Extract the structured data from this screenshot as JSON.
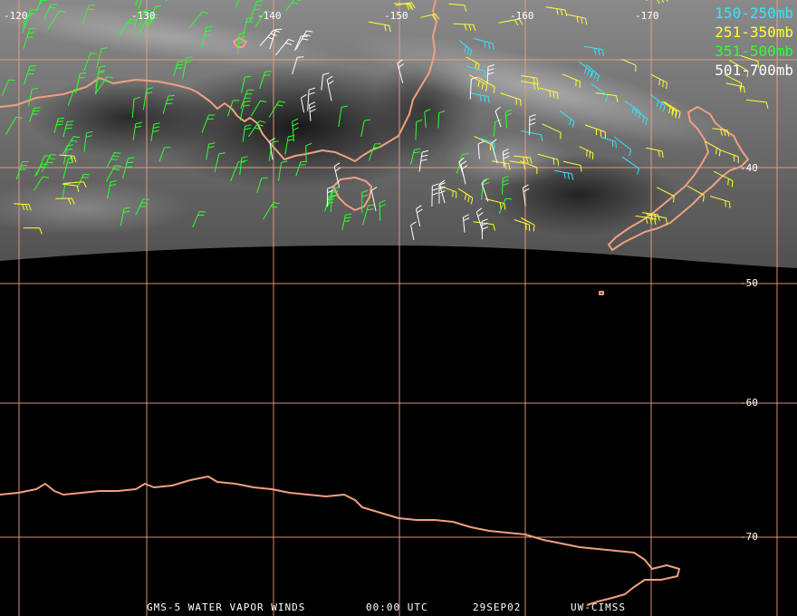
{
  "longitude_labels": [
    "-120",
    "-130",
    "-140",
    "-150",
    "-160",
    "-170"
  ],
  "latitude_labels": [
    "-40",
    "-50",
    "-60",
    "-70"
  ],
  "legend": [
    {
      "label": "150-250mb",
      "color": "#30e8ff"
    },
    {
      "label": "251-350mb",
      "color": "#ffff30"
    },
    {
      "label": "351-500mb",
      "color": "#30ff30"
    },
    {
      "label": "501-700mb",
      "color": "#ffffff"
    }
  ],
  "footer": {
    "satellite": "GMS-5 WATER VAPOR WINDS",
    "time": "00:00 UTC",
    "date": "29SEP02",
    "credit": "UW-CIMSS"
  },
  "colors": {
    "grid": "#f0a080",
    "coastline": "#f0a080",
    "background": "#000000"
  }
}
